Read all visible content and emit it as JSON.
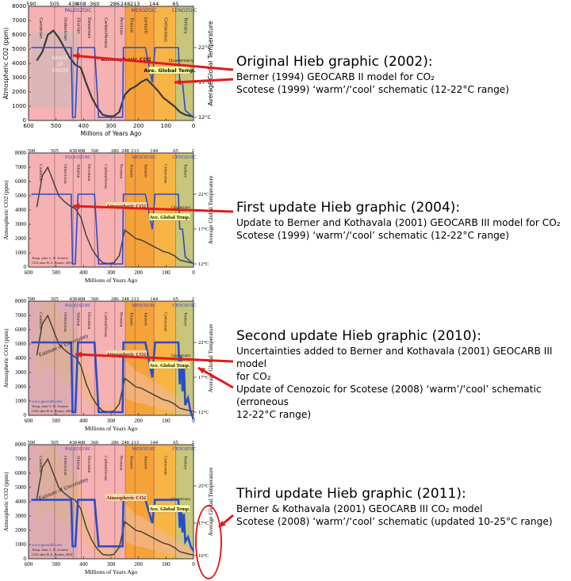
{
  "colors": {
    "paleozoic": "#f6b1b3",
    "mesozoic_early": "#f6a23a",
    "mesozoic_late": "#f8b545",
    "cenozoic": "#c7c67a",
    "co2_line": "#3a3a3a",
    "temp_line": "#2b4cc8",
    "arrow": "#e31b1b",
    "uncertainty": "#f2b789",
    "error_hatch": "#bdbdbd"
  },
  "panels": [
    {
      "heading": "Original Hieb graphic (2002):",
      "lines": [
        "Berner (1994) GEOCARB II model for CO₂",
        "Scotese (1999) ‘warm’/‘cool’ schematic (12-22°C range)"
      ],
      "chart_labels": {
        "co2": "Atmospheric CO2",
        "temp": "Ave. Global Temp.",
        "error": [
          "RANGE",
          "OF",
          "ERROR"
        ],
        "credit": []
      }
    },
    {
      "heading": "First update Hieb graphic (2004):",
      "lines": [
        "Update to Berner and Kothavala (2001) GEOCARB III model for CO₂",
        "Scotese (1999) ‘warm’/‘cool’ schematic (12-22°C range)"
      ],
      "chart_labels": {
        "co2": "Atmospheric CO2",
        "temp": "Ave. Global Temp.",
        "error": [],
        "credit": [
          "Temp. after C. R. Scotese",
          "CO2 after R.A. Berner, 2001"
        ]
      }
    },
    {
      "heading": "Second update Hieb graphic (2010):",
      "lines": [
        "Uncertainties added to Berner and Kothavala (2001) GEOCARB III model",
        "for CO₂",
        "Update of Cenozoic for Scotese (2008) ‘warm’/‘cool’ schematic (erroneous",
        "12-22°C range)"
      ],
      "chart_labels": {
        "co2": "Atmospheric CO2",
        "temp": "Ave. Global Temp.",
        "error": [
          "Estimate of Uncertainty"
        ],
        "credit": [
          "www.geocraft.com",
          "Temp. after C. R. Scotese",
          "CO2 after R.A. Berner, 2001"
        ]
      }
    },
    {
      "heading": "Third update Hieb graphic (2011):",
      "lines": [
        "Berner & Kothavala (2001) GEOCARB III CO₂ model",
        "Scotese (2008) ‘warm’/‘cool’ schematic (updated 10-25°C range)"
      ],
      "chart_labels": {
        "co2": "Atmospheric CO2",
        "temp": "Ave. Global Temp.",
        "error": [
          "Estimate of Uncertainty"
        ],
        "credit": [
          "www.geocraft.com",
          "Temp. after C. R. Scotese",
          "CO2 after R.A. Berner, 2001"
        ]
      }
    }
  ],
  "chart_data": [
    {
      "type": "line",
      "xlabel": "Millions of Years Ago",
      "ylabel": "Atmospheric CO2 (ppm)",
      "y2label": "Average Global Temperature",
      "xlim": [
        600,
        0
      ],
      "ylim": [
        0,
        8000
      ],
      "x_ticks": [
        "600",
        "500",
        "400",
        "300",
        "200",
        "100",
        "0"
      ],
      "y_ticks": [
        "0",
        "1000",
        "2000",
        "3000",
        "4000",
        "5000",
        "6000",
        "7000",
        "8000"
      ],
      "top_ticks": [
        "590",
        "505",
        "438",
        "408",
        "360",
        "286",
        "248",
        "213",
        "144",
        "65"
      ],
      "eras": [
        "PALEOZOIC",
        "MESOZOIC",
        "CENOZOIC"
      ],
      "periods": [
        "Cambrian",
        "Ordovician",
        "Silurian",
        "Devonian",
        "Carboniferous",
        "Permian",
        "Triassic",
        "Jurassic",
        "Cretaceous",
        "Tertiary"
      ],
      "quaternary": "Quaternary",
      "temp_ticks": [
        "22°C",
        "17°C",
        "12°C"
      ],
      "series": [
        {
          "name": "Atmospheric CO2",
          "x": [
            570,
            550,
            530,
            510,
            490,
            470,
            450,
            430,
            410,
            390,
            370,
            350,
            330,
            310,
            290,
            270,
            250,
            230,
            210,
            190,
            170,
            150,
            130,
            110,
            90,
            70,
            50,
            30,
            10,
            0
          ],
          "values": [
            4200,
            4800,
            6000,
            6300,
            5800,
            5100,
            4400,
            3900,
            3700,
            2600,
            1600,
            900,
            400,
            300,
            300,
            600,
            1800,
            2200,
            2400,
            2700,
            2900,
            2500,
            2100,
            1600,
            1300,
            1000,
            600,
            400,
            300,
            280
          ]
        },
        {
          "name": "Ave. Global Temp.",
          "x": [
            590,
            520,
            470,
            445,
            440,
            430,
            420,
            410,
            360,
            345,
            330,
            290,
            265,
            258,
            255,
            175,
            150,
            140,
            55,
            50,
            40,
            30,
            0
          ],
          "temp": [
            22,
            22,
            22,
            22,
            12,
            12,
            22,
            22,
            22,
            12,
            12,
            12,
            12,
            12,
            22,
            22,
            17,
            22,
            22,
            17,
            17,
            13,
            12
          ]
        }
      ]
    },
    {
      "type": "line",
      "xlabel": "Millions of Years Ago",
      "ylabel": "Atmospheric CO2 (ppm)",
      "y2label": "Average Global Temperature",
      "xlim": [
        600,
        0
      ],
      "ylim": [
        0,
        8000
      ],
      "x_ticks": [
        "600",
        "500",
        "400",
        "300",
        "200",
        "100",
        "0"
      ],
      "y_ticks": [
        "0",
        "1000",
        "2000",
        "3000",
        "4000",
        "5000",
        "6000",
        "7000",
        "8000"
      ],
      "top_ticks": [
        "590",
        "505",
        "438",
        "408",
        "360",
        "286",
        "248",
        "213",
        "144",
        "65",
        "2"
      ],
      "eras": [
        "PALEOZOIC",
        "MESOZOIC",
        "CENOZOIC"
      ],
      "periods": [
        "Cambrian",
        "Ordovician",
        "Silurian",
        "Devonian",
        "Carboniferous",
        "Permian",
        "Triassic",
        "Jurassic",
        "Cretaceous",
        "Tertiary"
      ],
      "quaternary": "Quaternary",
      "temp_ticks": [
        "22°C",
        "17°C",
        "12°C"
      ],
      "series": [
        {
          "name": "Atmospheric CO2",
          "x": [
            570,
            550,
            530,
            510,
            490,
            470,
            450,
            430,
            410,
            390,
            370,
            350,
            330,
            310,
            290,
            270,
            250,
            230,
            210,
            190,
            170,
            150,
            130,
            110,
            90,
            70,
            50,
            30,
            10,
            0
          ],
          "values": [
            4200,
            6400,
            7000,
            6000,
            5000,
            4600,
            4300,
            4100,
            3500,
            2200,
            1300,
            700,
            300,
            250,
            300,
            800,
            2600,
            2300,
            2000,
            1900,
            1700,
            1500,
            1300,
            1100,
            1000,
            800,
            500,
            400,
            300,
            280
          ]
        },
        {
          "name": "Ave. Global Temp.",
          "x": [
            590,
            520,
            470,
            445,
            440,
            430,
            420,
            410,
            360,
            345,
            330,
            290,
            265,
            258,
            255,
            175,
            150,
            140,
            55,
            50,
            40,
            30,
            0
          ],
          "temp": [
            22,
            22,
            22,
            22,
            12,
            12,
            22,
            22,
            22,
            12,
            12,
            12,
            12,
            12,
            22,
            22,
            17,
            22,
            22,
            17,
            17,
            13,
            12
          ]
        }
      ]
    },
    {
      "type": "line",
      "xlabel": "Millions of Years Ago",
      "ylabel": "Atmospheric CO2 (ppm)",
      "y2label": "Average Global Temperature",
      "xlim": [
        600,
        0
      ],
      "ylim": [
        0,
        8000
      ],
      "x_ticks": [
        "600",
        "500",
        "400",
        "300",
        "200",
        "100",
        "0"
      ],
      "y_ticks": [
        "0",
        "1000",
        "2000",
        "3000",
        "4000",
        "5000",
        "6000",
        "7000",
        "8000"
      ],
      "top_ticks": [
        "590",
        "505",
        "438",
        "408",
        "360",
        "286",
        "248",
        "213",
        "144",
        "65",
        "2"
      ],
      "eras": [
        "PALEOZOIC",
        "MESOZOIC",
        "CENOZOIC"
      ],
      "periods": [
        "Cambrian",
        "Ordovician",
        "Silurian",
        "Devonian",
        "Carboniferous",
        "Permian",
        "Triassic",
        "Jurassic",
        "Cretaceous",
        "Tertiary"
      ],
      "quaternary": "Quaternary",
      "temp_ticks": [
        "22°C",
        "17°C",
        "12°C"
      ],
      "series": [
        {
          "name": "Atmospheric CO2",
          "x": [
            570,
            550,
            530,
            510,
            490,
            470,
            450,
            430,
            410,
            390,
            370,
            350,
            330,
            310,
            290,
            270,
            250,
            230,
            210,
            190,
            170,
            150,
            130,
            110,
            90,
            70,
            50,
            30,
            10,
            0
          ],
          "values": [
            4200,
            6400,
            7000,
            6000,
            5000,
            4600,
            4300,
            4100,
            3500,
            2200,
            1300,
            700,
            300,
            250,
            300,
            800,
            2600,
            2300,
            2000,
            1900,
            1700,
            1500,
            1300,
            1100,
            1000,
            800,
            500,
            400,
            300,
            280
          ]
        },
        {
          "name": "Ave. Global Temp.",
          "x": [
            590,
            520,
            470,
            445,
            440,
            430,
            420,
            410,
            360,
            345,
            330,
            290,
            265,
            258,
            255,
            175,
            150,
            140,
            55,
            50,
            45,
            40,
            35,
            30,
            20,
            10,
            0
          ],
          "temp": [
            22,
            22,
            22,
            22,
            12,
            12,
            22,
            22,
            22,
            12,
            12,
            12,
            12,
            12,
            22,
            22,
            17,
            22,
            22,
            16,
            20,
            15,
            19,
            13,
            14,
            12,
            11
          ]
        }
      ]
    },
    {
      "type": "line",
      "xlabel": "Millions of Years Ago",
      "ylabel": "Atmospheric CO2 (ppm)",
      "y2label": "Average Global Temperature",
      "xlim": [
        600,
        0
      ],
      "ylim": [
        0,
        8000
      ],
      "x_ticks": [
        "600",
        "500",
        "400",
        "300",
        "200",
        "100",
        "0"
      ],
      "y_ticks": [
        "0",
        "1000",
        "2000",
        "3000",
        "4000",
        "5000",
        "6000",
        "7000",
        "8000"
      ],
      "top_ticks": [
        "590",
        "505",
        "438",
        "408",
        "360",
        "286",
        "248",
        "213",
        "144",
        "65",
        "2"
      ],
      "eras": [
        "PALEOZOIC",
        "MESOZOIC",
        "CENOZOIC"
      ],
      "periods": [
        "Cambrian",
        "Ordovician",
        "Silurian",
        "Devonian",
        "Carboniferous",
        "Permian",
        "Triassic",
        "Jurassic",
        "Cretaceous",
        "Tertiary"
      ],
      "quaternary": "Quaternary",
      "temp_ticks": [
        "25°C",
        "17°C",
        "10°C"
      ],
      "series": [
        {
          "name": "Atmospheric CO2",
          "x": [
            570,
            550,
            530,
            510,
            490,
            470,
            450,
            430,
            410,
            390,
            370,
            350,
            330,
            310,
            290,
            270,
            250,
            230,
            210,
            190,
            170,
            150,
            130,
            110,
            90,
            70,
            50,
            30,
            10,
            0
          ],
          "values": [
            4200,
            6400,
            7000,
            6000,
            5000,
            4600,
            4300,
            4100,
            3500,
            2200,
            1300,
            700,
            300,
            250,
            300,
            800,
            2600,
            2300,
            2000,
            1900,
            1700,
            1500,
            1300,
            1100,
            1000,
            800,
            500,
            400,
            300,
            280
          ]
        },
        {
          "name": "Ave. Global Temp.",
          "x": [
            590,
            520,
            470,
            445,
            440,
            430,
            420,
            410,
            360,
            345,
            330,
            290,
            265,
            258,
            255,
            175,
            150,
            140,
            55,
            50,
            45,
            40,
            35,
            30,
            20,
            10,
            0
          ],
          "temp": [
            22,
            22,
            22,
            22,
            12,
            12,
            22,
            22,
            22,
            12,
            12,
            12,
            12,
            12,
            22,
            22,
            17,
            22,
            22,
            16,
            20,
            15,
            19,
            13,
            14,
            12,
            11
          ]
        }
      ]
    }
  ]
}
